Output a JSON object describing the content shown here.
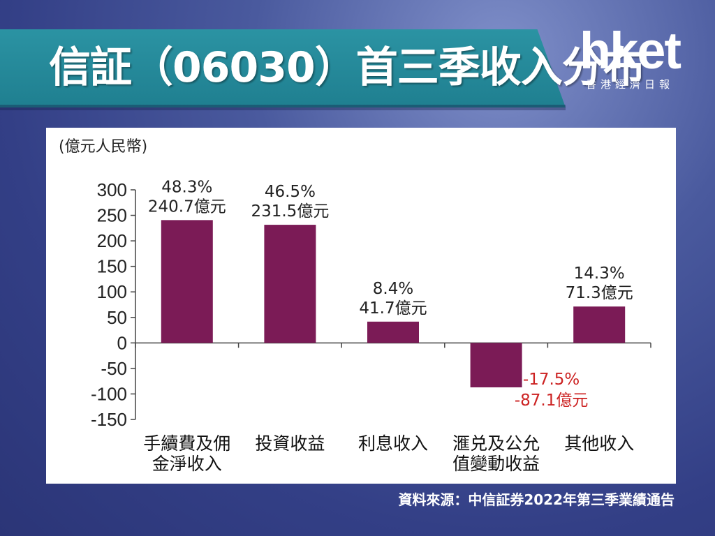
{
  "header": {
    "title": "信証（06030）首三季收入分布",
    "logo": "hket",
    "logo_sub": "香港經濟日報"
  },
  "source": "資料來源：中信証券2022年第三季業績通告",
  "colors": {
    "bar": "#7b1b56",
    "negative_label": "#cc2222",
    "banner": "#2389a0"
  },
  "chart_data": {
    "type": "bar",
    "unit_label": "(億元人民幣)",
    "ylim": [
      -150,
      300
    ],
    "yticks": [
      300,
      250,
      200,
      150,
      100,
      50,
      0,
      -50,
      -100,
      -150
    ],
    "categories": [
      [
        "手續費及佣",
        "金淨收入"
      ],
      [
        "投資收益"
      ],
      [
        "利息收入"
      ],
      [
        "滙兑及公允",
        "值變動收益"
      ],
      [
        "其他收入"
      ]
    ],
    "values": [
      240.7,
      231.5,
      41.7,
      -87.1,
      71.3
    ],
    "data_labels": [
      [
        "48.3%",
        "240.7億元"
      ],
      [
        "46.5%",
        "231.5億元"
      ],
      [
        "8.4%",
        "41.7億元"
      ],
      [
        "-17.5%",
        "-87.1億元"
      ],
      [
        "14.3%",
        "71.3億元"
      ]
    ]
  }
}
